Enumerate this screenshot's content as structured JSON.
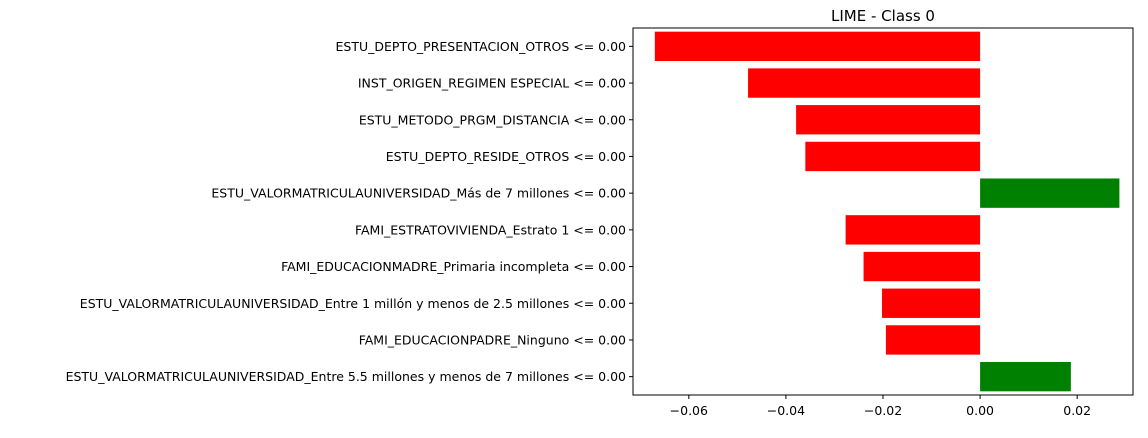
{
  "chart_data": {
    "type": "bar",
    "orientation": "horizontal",
    "title": "LIME - Class 0",
    "xlabel": "",
    "ylabel": "",
    "xlim": [
      -0.0715,
      0.0315
    ],
    "xticks": [
      -0.06,
      -0.04,
      -0.02,
      0.0,
      0.02
    ],
    "xtick_labels": [
      "−0.06",
      "−0.04",
      "−0.02",
      "0.00",
      "0.02"
    ],
    "grid": false,
    "colors": {
      "negative": "#ff0000",
      "positive": "#008000"
    },
    "categories": [
      "ESTU_DEPTO_PRESENTACION_OTROS <= 0.00",
      "INST_ORIGEN_REGIMEN ESPECIAL <= 0.00",
      "ESTU_METODO_PRGM_DISTANCIA <= 0.00",
      "ESTU_DEPTO_RESIDE_OTROS <= 0.00",
      "ESTU_VALORMATRICULAUNIVERSIDAD_Más de 7 millones <= 0.00",
      "FAMI_ESTRATOVIVIENDA_Estrato 1 <= 0.00",
      "FAMI_EDUCACIONMADRE_Primaria incompleta <= 0.00",
      "ESTU_VALORMATRICULAUNIVERSIDAD_Entre 1 millón y menos de 2.5 millones <= 0.00",
      "FAMI_EDUCACIONPADRE_Ninguno <= 0.00",
      "ESTU_VALORMATRICULAUNIVERSIDAD_Entre 5.5 millones y menos de 7 millones <= 0.00"
    ],
    "values": [
      -0.067,
      -0.0478,
      -0.0379,
      -0.036,
      0.0287,
      -0.0277,
      -0.024,
      -0.0202,
      -0.0194,
      0.0187
    ]
  }
}
